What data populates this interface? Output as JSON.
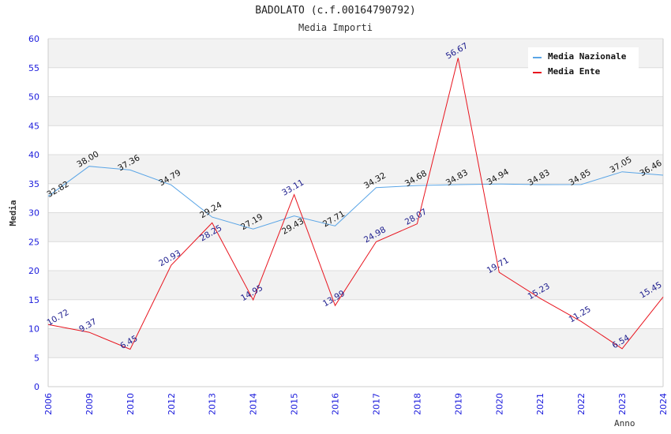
{
  "chart_data": {
    "type": "line",
    "title": "BADOLATO (c.f.00164790792)",
    "subtitle": "Media Importi",
    "xlabel": "Anno",
    "ylabel": "Media",
    "ylim": [
      0,
      60
    ],
    "yticks": [
      0,
      5,
      10,
      15,
      20,
      25,
      30,
      35,
      40,
      45,
      50,
      55,
      60
    ],
    "categories": [
      "2006",
      "2009",
      "2010",
      "2012",
      "2013",
      "2014",
      "2015",
      "2016",
      "2017",
      "2018",
      "2019",
      "2020",
      "2021",
      "2022",
      "2023",
      "2024"
    ],
    "grid": true,
    "legend_position": "top-right",
    "series": [
      {
        "name": "Media Nazionale",
        "color": "#5aa5e6",
        "label_color": "#111111",
        "values": [
          32.82,
          38.0,
          37.36,
          34.79,
          29.24,
          27.19,
          29.43,
          27.71,
          34.32,
          34.68,
          34.83,
          34.94,
          34.83,
          34.85,
          37.05,
          36.46
        ],
        "labels": [
          "32.82",
          "38.00",
          "37.36",
          "34.79",
          "29.24",
          "27.19",
          "29.43",
          "27.71",
          "34.32",
          "34.68",
          "34.83",
          "34.94",
          "34.83",
          "34.85",
          "37.05",
          "36.46"
        ]
      },
      {
        "name": "Media Ente",
        "color": "#e8141e",
        "label_color": "#1a1a8c",
        "values": [
          10.72,
          9.37,
          6.45,
          20.93,
          28.25,
          14.95,
          33.11,
          13.99,
          24.98,
          28.07,
          56.67,
          19.71,
          15.23,
          11.25,
          6.54,
          15.45
        ],
        "labels": [
          "10.72",
          "9.37",
          "6.45",
          "20.93",
          "28.25",
          "14.95",
          "33.11",
          "13.99",
          "24.98",
          "28.07",
          "56.67",
          "19.71",
          "15.23",
          "11.25",
          "6.54",
          "15.45"
        ]
      }
    ]
  }
}
